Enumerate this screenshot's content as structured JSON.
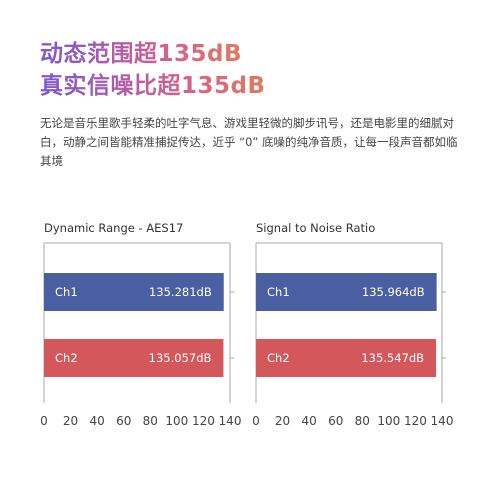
{
  "header": {
    "title_line1": "动态范围超135dB",
    "title_line2": "真实信噪比超135dB",
    "description": "无论是音乐里歌手轻柔的吐字气息、游戏里轻微的脚步讯号，还是电影里的细腻对白，动静之间皆能精准捕捉传达，近乎 “0” 底噪的纯净音质，让每一段声音都如临其境"
  },
  "colors": {
    "ch1": "#4a5fa1",
    "ch2": "#d4575b",
    "axis": "#aaaaaa"
  },
  "chart_data": [
    {
      "type": "bar",
      "orientation": "horizontal",
      "title": "Dynamic Range - AES17",
      "categories": [
        "Ch1",
        "Ch2"
      ],
      "values": [
        135.281,
        135.057
      ],
      "value_labels": [
        "135.281dB",
        "135.057dB"
      ],
      "xlim": [
        0,
        140
      ],
      "xticks": [
        0,
        20,
        40,
        60,
        80,
        100,
        120,
        140
      ],
      "grid": false
    },
    {
      "type": "bar",
      "orientation": "horizontal",
      "title": "Signal to Noise Ratio",
      "categories": [
        "Ch1",
        "Ch2"
      ],
      "values": [
        135.964,
        135.547
      ],
      "value_labels": [
        "135.964dB",
        "135.547dB"
      ],
      "xlim": [
        0,
        140
      ],
      "xticks": [
        0,
        20,
        40,
        60,
        80,
        100,
        120,
        140
      ],
      "grid": false
    }
  ]
}
